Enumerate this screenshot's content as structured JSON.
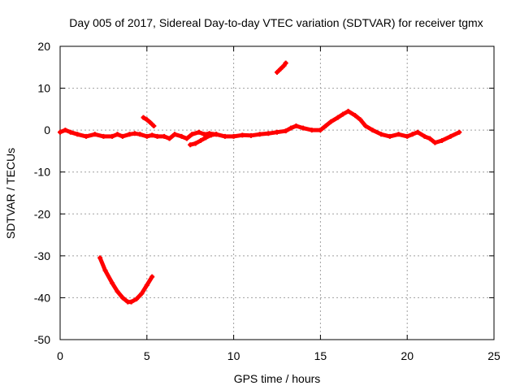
{
  "chart_data": {
    "type": "scatter",
    "title": "Day 005 of 2017, Sidereal Day-to-day VTEC variation (SDTVAR) for receiver tgmx",
    "xlabel": "GPS time / hours",
    "ylabel": "SDTVAR / TECUs",
    "xlim": [
      0,
      25
    ],
    "ylim": [
      -50,
      20
    ],
    "xticks": [
      0,
      5,
      10,
      15,
      20,
      25
    ],
    "yticks": [
      -50,
      -40,
      -30,
      -20,
      -10,
      0,
      10,
      20
    ],
    "xtick_labels": [
      "0",
      "5",
      "10",
      "15",
      "20",
      "25"
    ],
    "ytick_labels": [
      "-50",
      "-40",
      "-30",
      "-20",
      "-10",
      "0",
      "10",
      "20"
    ],
    "grid": true,
    "series": [
      {
        "name": "main-track",
        "color": "#ff0000",
        "x": [
          0.0,
          0.3,
          0.6,
          1.0,
          1.5,
          2.0,
          2.5,
          3.0,
          3.3,
          3.6,
          4.0,
          4.3,
          4.6,
          5.0,
          5.3,
          5.6,
          6.0,
          6.3,
          6.6,
          7.0,
          7.3,
          7.6,
          8.0,
          8.3,
          8.6,
          9.0,
          9.5,
          10.0,
          10.5,
          11.0,
          11.5,
          12.0,
          12.5,
          13.0,
          13.3,
          13.6,
          14.0,
          14.5,
          15.0,
          15.3,
          15.6,
          16.0,
          16.3,
          16.6,
          17.0,
          17.3,
          17.6,
          18.0,
          18.5,
          19.0,
          19.5,
          20.0,
          20.3,
          20.6,
          21.0,
          21.3,
          21.6,
          22.0,
          22.5,
          23.0
        ],
        "y": [
          -0.5,
          0.0,
          -0.5,
          -1.0,
          -1.5,
          -1.0,
          -1.5,
          -1.5,
          -1.0,
          -1.5,
          -1.0,
          -0.8,
          -1.0,
          -1.5,
          -1.2,
          -1.5,
          -1.5,
          -2.0,
          -1.0,
          -1.5,
          -2.0,
          -1.0,
          -0.5,
          -1.0,
          -0.8,
          -1.0,
          -1.5,
          -1.5,
          -1.2,
          -1.3,
          -1.0,
          -0.8,
          -0.5,
          -0.2,
          0.5,
          1.0,
          0.5,
          0.0,
          0.0,
          1.0,
          2.0,
          3.0,
          3.8,
          4.5,
          3.5,
          2.5,
          1.0,
          0.0,
          -1.0,
          -1.5,
          -1.0,
          -1.5,
          -1.0,
          -0.5,
          -1.5,
          -2.0,
          -3.0,
          -2.5,
          -1.5,
          -0.5
        ]
      },
      {
        "name": "arc-segment",
        "color": "#ff0000",
        "x": [
          2.3,
          2.6,
          3.0,
          3.3,
          3.6,
          3.9,
          4.1,
          4.4,
          4.7,
          5.0,
          5.3
        ],
        "y": [
          -30.5,
          -33.5,
          -36.5,
          -38.5,
          -40.0,
          -41.0,
          -41.0,
          -40.3,
          -39.0,
          -37.0,
          -35.0
        ]
      },
      {
        "name": "segment-5h",
        "color": "#ff0000",
        "x": [
          4.8,
          5.0,
          5.2,
          5.4
        ],
        "y": [
          3.0,
          2.5,
          1.8,
          1.0
        ]
      },
      {
        "name": "segment-12h",
        "color": "#ff0000",
        "x": [
          12.5,
          12.7,
          12.9,
          13.0
        ],
        "y": [
          13.8,
          14.6,
          15.4,
          16.0
        ]
      },
      {
        "name": "segment-8h",
        "color": "#ff0000",
        "x": [
          7.5,
          7.8,
          8.1,
          8.4,
          8.7,
          9.0
        ],
        "y": [
          -3.5,
          -3.2,
          -2.5,
          -1.8,
          -1.2,
          -1.0
        ]
      }
    ]
  }
}
